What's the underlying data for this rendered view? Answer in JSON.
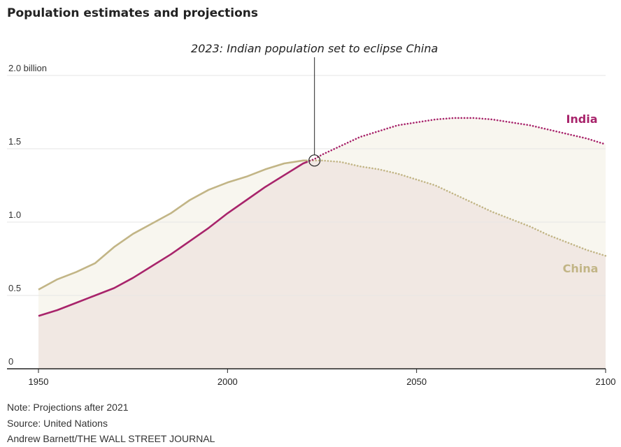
{
  "title": "Population estimates and projections",
  "notes": {
    "note": "Note: Projections after 2021",
    "source": "Source: United Nations",
    "credit": "Andrew Barnett/THE WALL STREET JOURNAL"
  },
  "colors": {
    "india": "#a8246b",
    "china": "#c2b586",
    "india_fill": "#f9eef2",
    "china_fill": "#f1e8e3",
    "gap_fill": "#f8f6ef",
    "grid": "#e6e6e6",
    "axis": "#222222"
  },
  "chart_data": {
    "type": "line",
    "title": "Population estimates and projections",
    "xlabel": "",
    "ylabel": "",
    "xlim": [
      1950,
      2100
    ],
    "ylim": [
      0,
      2.0
    ],
    "x_ticks": [
      1950,
      2000,
      2050,
      2100
    ],
    "x_tick_labels": [
      "1950",
      "2000",
      "2050",
      "2100"
    ],
    "y_ticks": [
      0,
      0.5,
      1.0,
      1.5,
      2.0
    ],
    "y_tick_labels": [
      "0",
      "0.5",
      "1.0",
      "1.5",
      "2.0 billion"
    ],
    "projection_start": 2021,
    "annotation": {
      "text": "2023: Indian population set to eclipse China",
      "x": 2023,
      "y": 1.42
    },
    "series": [
      {
        "name": "India",
        "x": [
          1950,
          1955,
          1960,
          1965,
          1970,
          1975,
          1980,
          1985,
          1990,
          1995,
          2000,
          2005,
          2010,
          2015,
          2020,
          2021,
          2023,
          2025,
          2030,
          2035,
          2040,
          2045,
          2050,
          2055,
          2060,
          2065,
          2070,
          2075,
          2080,
          2085,
          2090,
          2095,
          2100
        ],
        "values": [
          0.36,
          0.4,
          0.45,
          0.5,
          0.55,
          0.62,
          0.7,
          0.78,
          0.87,
          0.96,
          1.06,
          1.15,
          1.24,
          1.32,
          1.4,
          1.41,
          1.43,
          1.46,
          1.52,
          1.58,
          1.62,
          1.66,
          1.68,
          1.7,
          1.71,
          1.71,
          1.7,
          1.68,
          1.66,
          1.63,
          1.6,
          1.57,
          1.53
        ]
      },
      {
        "name": "China",
        "x": [
          1950,
          1955,
          1960,
          1965,
          1970,
          1975,
          1980,
          1985,
          1990,
          1995,
          2000,
          2005,
          2010,
          2015,
          2020,
          2021,
          2023,
          2025,
          2030,
          2035,
          2040,
          2045,
          2050,
          2055,
          2060,
          2065,
          2070,
          2075,
          2080,
          2085,
          2090,
          2095,
          2100
        ],
        "values": [
          0.54,
          0.61,
          0.66,
          0.72,
          0.83,
          0.92,
          0.99,
          1.06,
          1.15,
          1.22,
          1.27,
          1.31,
          1.36,
          1.4,
          1.42,
          1.42,
          1.42,
          1.42,
          1.41,
          1.38,
          1.36,
          1.33,
          1.29,
          1.25,
          1.19,
          1.13,
          1.07,
          1.02,
          0.97,
          0.91,
          0.86,
          0.81,
          0.77
        ]
      }
    ],
    "series_labels": [
      "India",
      "China"
    ],
    "grid": true
  }
}
